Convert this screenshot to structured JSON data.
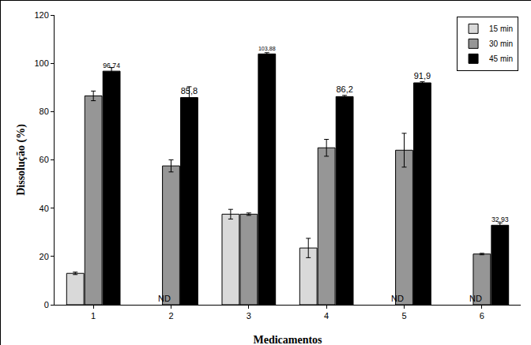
{
  "chart_data": {
    "type": "bar",
    "x_label": "Medicamentos",
    "y_label": "Dissolução (%)",
    "categories": [
      "1",
      "2",
      "3",
      "4",
      "5",
      "6"
    ],
    "series": [
      {
        "name": "15 min",
        "color": "#d9d9d9",
        "values": [
          13,
          null,
          37.5,
          23.5,
          null,
          null
        ],
        "errors": [
          0.5,
          null,
          2,
          4,
          null,
          null
        ]
      },
      {
        "name": "30 min",
        "color": "#969696",
        "values": [
          86.5,
          57.5,
          37.5,
          65,
          64,
          21
        ],
        "errors": [
          2,
          2.5,
          0.5,
          3.5,
          7,
          0.3
        ]
      },
      {
        "name": "45 min",
        "color": "#000000",
        "values": [
          96.74,
          85.8,
          103.88,
          86.2,
          91.9,
          32.93
        ],
        "value_labels": [
          "96,74",
          "85,8",
          "103,88",
          "86,2",
          "91,9",
          "32,93"
        ],
        "errors": [
          1.5,
          4.5,
          0.5,
          0.5,
          0.5,
          1
        ],
        "data_labels": true
      }
    ],
    "ylim": [
      0,
      120
    ],
    "yticks": [
      0,
      20,
      40,
      60,
      80,
      100,
      120
    ],
    "grid": false,
    "legend": "top right",
    "annotations": [
      {
        "text": "ND",
        "category": "2",
        "series": "15 min"
      },
      {
        "text": "ND",
        "category": "5",
        "series": "15 min"
      },
      {
        "text": "ND",
        "category": "6",
        "series": "15 min"
      }
    ]
  }
}
